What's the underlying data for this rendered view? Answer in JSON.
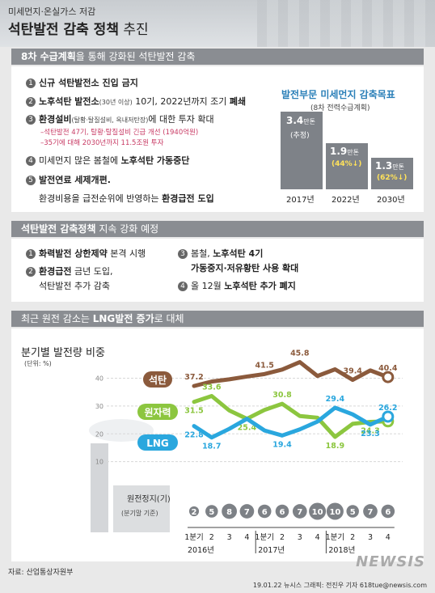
{
  "header": {
    "kicker": "미세먼지·온실가스 저감",
    "title_bold": "석탄발전 감축 정책",
    "title_rest": " 추진"
  },
  "section1": {
    "bar_bold": "8차 수급계획",
    "bar_rest": "을 통해 강화된 석탄발전 감축",
    "items": [
      {
        "n": "1",
        "text": "신규 석탄발전소 진입 금지"
      },
      {
        "n": "2",
        "text_a": "노후석탄 발전소",
        "small": "(30년 이상)",
        "text_b": " 10기, 2022년까지 조기 ",
        "text_c": "폐쇄"
      },
      {
        "n": "3",
        "text_a": "환경설비",
        "small": "(탈황·탈질설비, 옥내저탄장)",
        "text_b": "에 대한 투자 확대"
      },
      {
        "n": "4",
        "text_a": "미세먼지 많은 봄철에 ",
        "text_b": "노후석탄 가동중단"
      },
      {
        "n": "5",
        "text_a": "발전연료 세제개편."
      }
    ],
    "sub1": "–석탄발전 47기, 탈황·탈질설비 긴급 개선 (1940억원)",
    "sub2": "–35기에 대해 2030년까지 11.5조원 투자",
    "item5_line2_a": "환경비용을 급전순위에 반영하는 ",
    "item5_line2_b": "환경급전 도입",
    "graph": {
      "title": "발전부문 미세먼지 감축목표",
      "subtitle": "(8차 전력수급계획)",
      "unit": "만톤",
      "bars": [
        {
          "year": "2017년",
          "value": "3.4",
          "note": "(추정)",
          "pct": ""
        },
        {
          "year": "2022년",
          "value": "1.9",
          "note": "",
          "pct": "(44%↓)"
        },
        {
          "year": "2030년",
          "value": "1.3",
          "note": "",
          "pct": "(62%↓)"
        }
      ]
    }
  },
  "section2": {
    "bar_bold": "석탄발전 감축정책",
    "bar_rest": " 지속 강화 예정",
    "items": [
      {
        "n": "1",
        "a": "화력발전 상한제약",
        "b": " 본격 시행"
      },
      {
        "n": "2",
        "a": "환경급전",
        "b": " 금년 도입,",
        "c": "석탄발전 추가 감축"
      },
      {
        "n": "3",
        "a": "봄철, ",
        "b": "노후석탄 4기",
        "c": "가동중지·저유황탄 사용 확대"
      },
      {
        "n": "4",
        "a": "올 12월 ",
        "b": "노후석탄 추가 폐지"
      }
    ]
  },
  "section3": {
    "bar_a": "최근 원전 감소는 ",
    "bar_bold": "LNG발전 증가",
    "bar_b": "로 대체"
  },
  "chart_data": {
    "type": "line",
    "title": "분기별 발전량 비중",
    "unit_label": "(단위: %)",
    "x": [
      "1분기",
      "2",
      "3",
      "4",
      "1분기",
      "2",
      "3",
      "4",
      "1분기",
      "2",
      "3",
      "4"
    ],
    "year_labels": [
      "2016년",
      "2017년",
      "2018년"
    ],
    "ylim": [
      0,
      48
    ],
    "yticks": [
      10,
      20,
      30,
      40
    ],
    "series": [
      {
        "name": "석탄",
        "color": "#8b5a3c",
        "values": [
          37.2,
          38.8,
          39.6,
          40.6,
          41.5,
          43.1,
          45.8,
          40.8,
          43.2,
          39.4,
          42.8,
          40.4
        ]
      },
      {
        "name": "원자력",
        "color": "#8cc63f",
        "values": [
          31.5,
          33.6,
          28.4,
          25.4,
          28.6,
          30.8,
          26.4,
          25.8,
          18.9,
          23.6,
          24.3,
          24.5
        ]
      },
      {
        "name": "LNG",
        "color": "#2aa7de",
        "values": [
          22.8,
          18.7,
          21.8,
          25.4,
          21.2,
          19.4,
          21.6,
          24.4,
          29.4,
          27.0,
          23.3,
          26.2
        ]
      }
    ],
    "labels": {
      "석탄": [
        [
          0,
          "37.2"
        ],
        [
          4,
          "41.5"
        ],
        [
          6,
          "45.8"
        ],
        [
          9,
          "39.4"
        ],
        [
          11,
          "40.4"
        ]
      ],
      "원자력": [
        [
          0,
          "31.5"
        ],
        [
          1,
          "33.6"
        ],
        [
          3,
          "25.4"
        ],
        [
          5,
          "30.8"
        ],
        [
          8,
          "18.9"
        ],
        [
          10,
          "24.3"
        ]
      ],
      "LNG": [
        [
          0,
          "22.8"
        ],
        [
          1,
          "18.7"
        ],
        [
          5,
          "19.4"
        ],
        [
          8,
          "29.4"
        ],
        [
          10,
          "23.3"
        ],
        [
          11,
          "26.2"
        ]
      ]
    },
    "nuclear_stop_label": "원전정지(기)",
    "nuclear_stop_sub": "(분기말 기준)",
    "nuclear_stop": [
      "2",
      "5",
      "8",
      "7",
      "6",
      "6",
      "7",
      "10",
      "10",
      "5",
      "7",
      "6"
    ]
  },
  "footer": {
    "source": "자료: 산업통상자원부",
    "credit": "19.01.22 뉴시스 그래픽: 전진우 기자 618tue@newsis.com",
    "logo": "NEWSIS"
  }
}
